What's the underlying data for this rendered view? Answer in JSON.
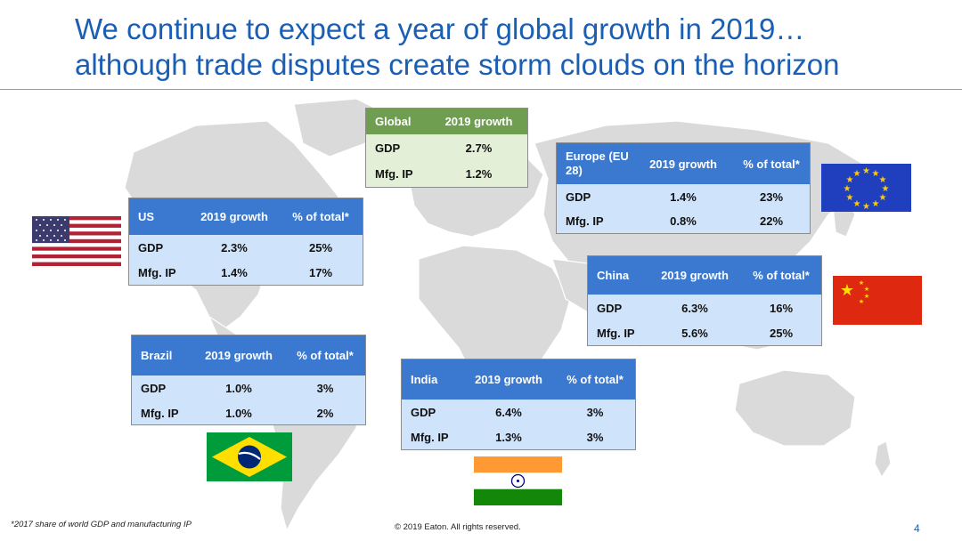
{
  "slide": {
    "title_line1": "We continue to expect a year of global growth in 2019…",
    "title_line2": "although trade disputes create storm clouds on the horizon",
    "footnote": "*2017 share of world GDP and manufacturing IP",
    "copyright": "© 2019 Eaton. All rights reserved.",
    "page_number": "4"
  },
  "colors": {
    "title": "#1a5fb4",
    "table_header": "#3b78d0",
    "table_body": "#cfe3fb",
    "global_header": "#6f9e50",
    "global_body": "#e4efd8",
    "map_land": "#dadada"
  },
  "tables": {
    "global": {
      "headers": [
        "Global",
        "2019 growth"
      ],
      "rows": [
        [
          "GDP",
          "2.7%"
        ],
        [
          "Mfg. IP",
          "1.2%"
        ]
      ]
    },
    "us": {
      "headers": [
        "US",
        "2019 growth",
        "% of total*"
      ],
      "rows": [
        [
          "GDP",
          "2.3%",
          "25%"
        ],
        [
          "Mfg. IP",
          "1.4%",
          "17%"
        ]
      ]
    },
    "europe": {
      "headers": [
        "Europe (EU 28)",
        "2019 growth",
        "% of total*"
      ],
      "rows": [
        [
          "GDP",
          "1.4%",
          "23%"
        ],
        [
          "Mfg. IP",
          "0.8%",
          "22%"
        ]
      ]
    },
    "china": {
      "headers": [
        "China",
        "2019 growth",
        "% of total*"
      ],
      "rows": [
        [
          "GDP",
          "6.3%",
          "16%"
        ],
        [
          "Mfg. IP",
          "5.6%",
          "25%"
        ]
      ]
    },
    "brazil": {
      "headers": [
        "Brazil",
        "2019 growth",
        "% of total*"
      ],
      "rows": [
        [
          "GDP",
          "1.0%",
          "3%"
        ],
        [
          "Mfg. IP",
          "1.0%",
          "2%"
        ]
      ]
    },
    "india": {
      "headers": [
        "India",
        "2019 growth",
        "% of total*"
      ],
      "rows": [
        [
          "GDP",
          "6.4%",
          "3%"
        ],
        [
          "Mfg. IP",
          "1.3%",
          "3%"
        ]
      ]
    }
  },
  "flags": [
    "us-flag",
    "eu-flag",
    "china-flag",
    "brazil-flag",
    "india-flag"
  ]
}
